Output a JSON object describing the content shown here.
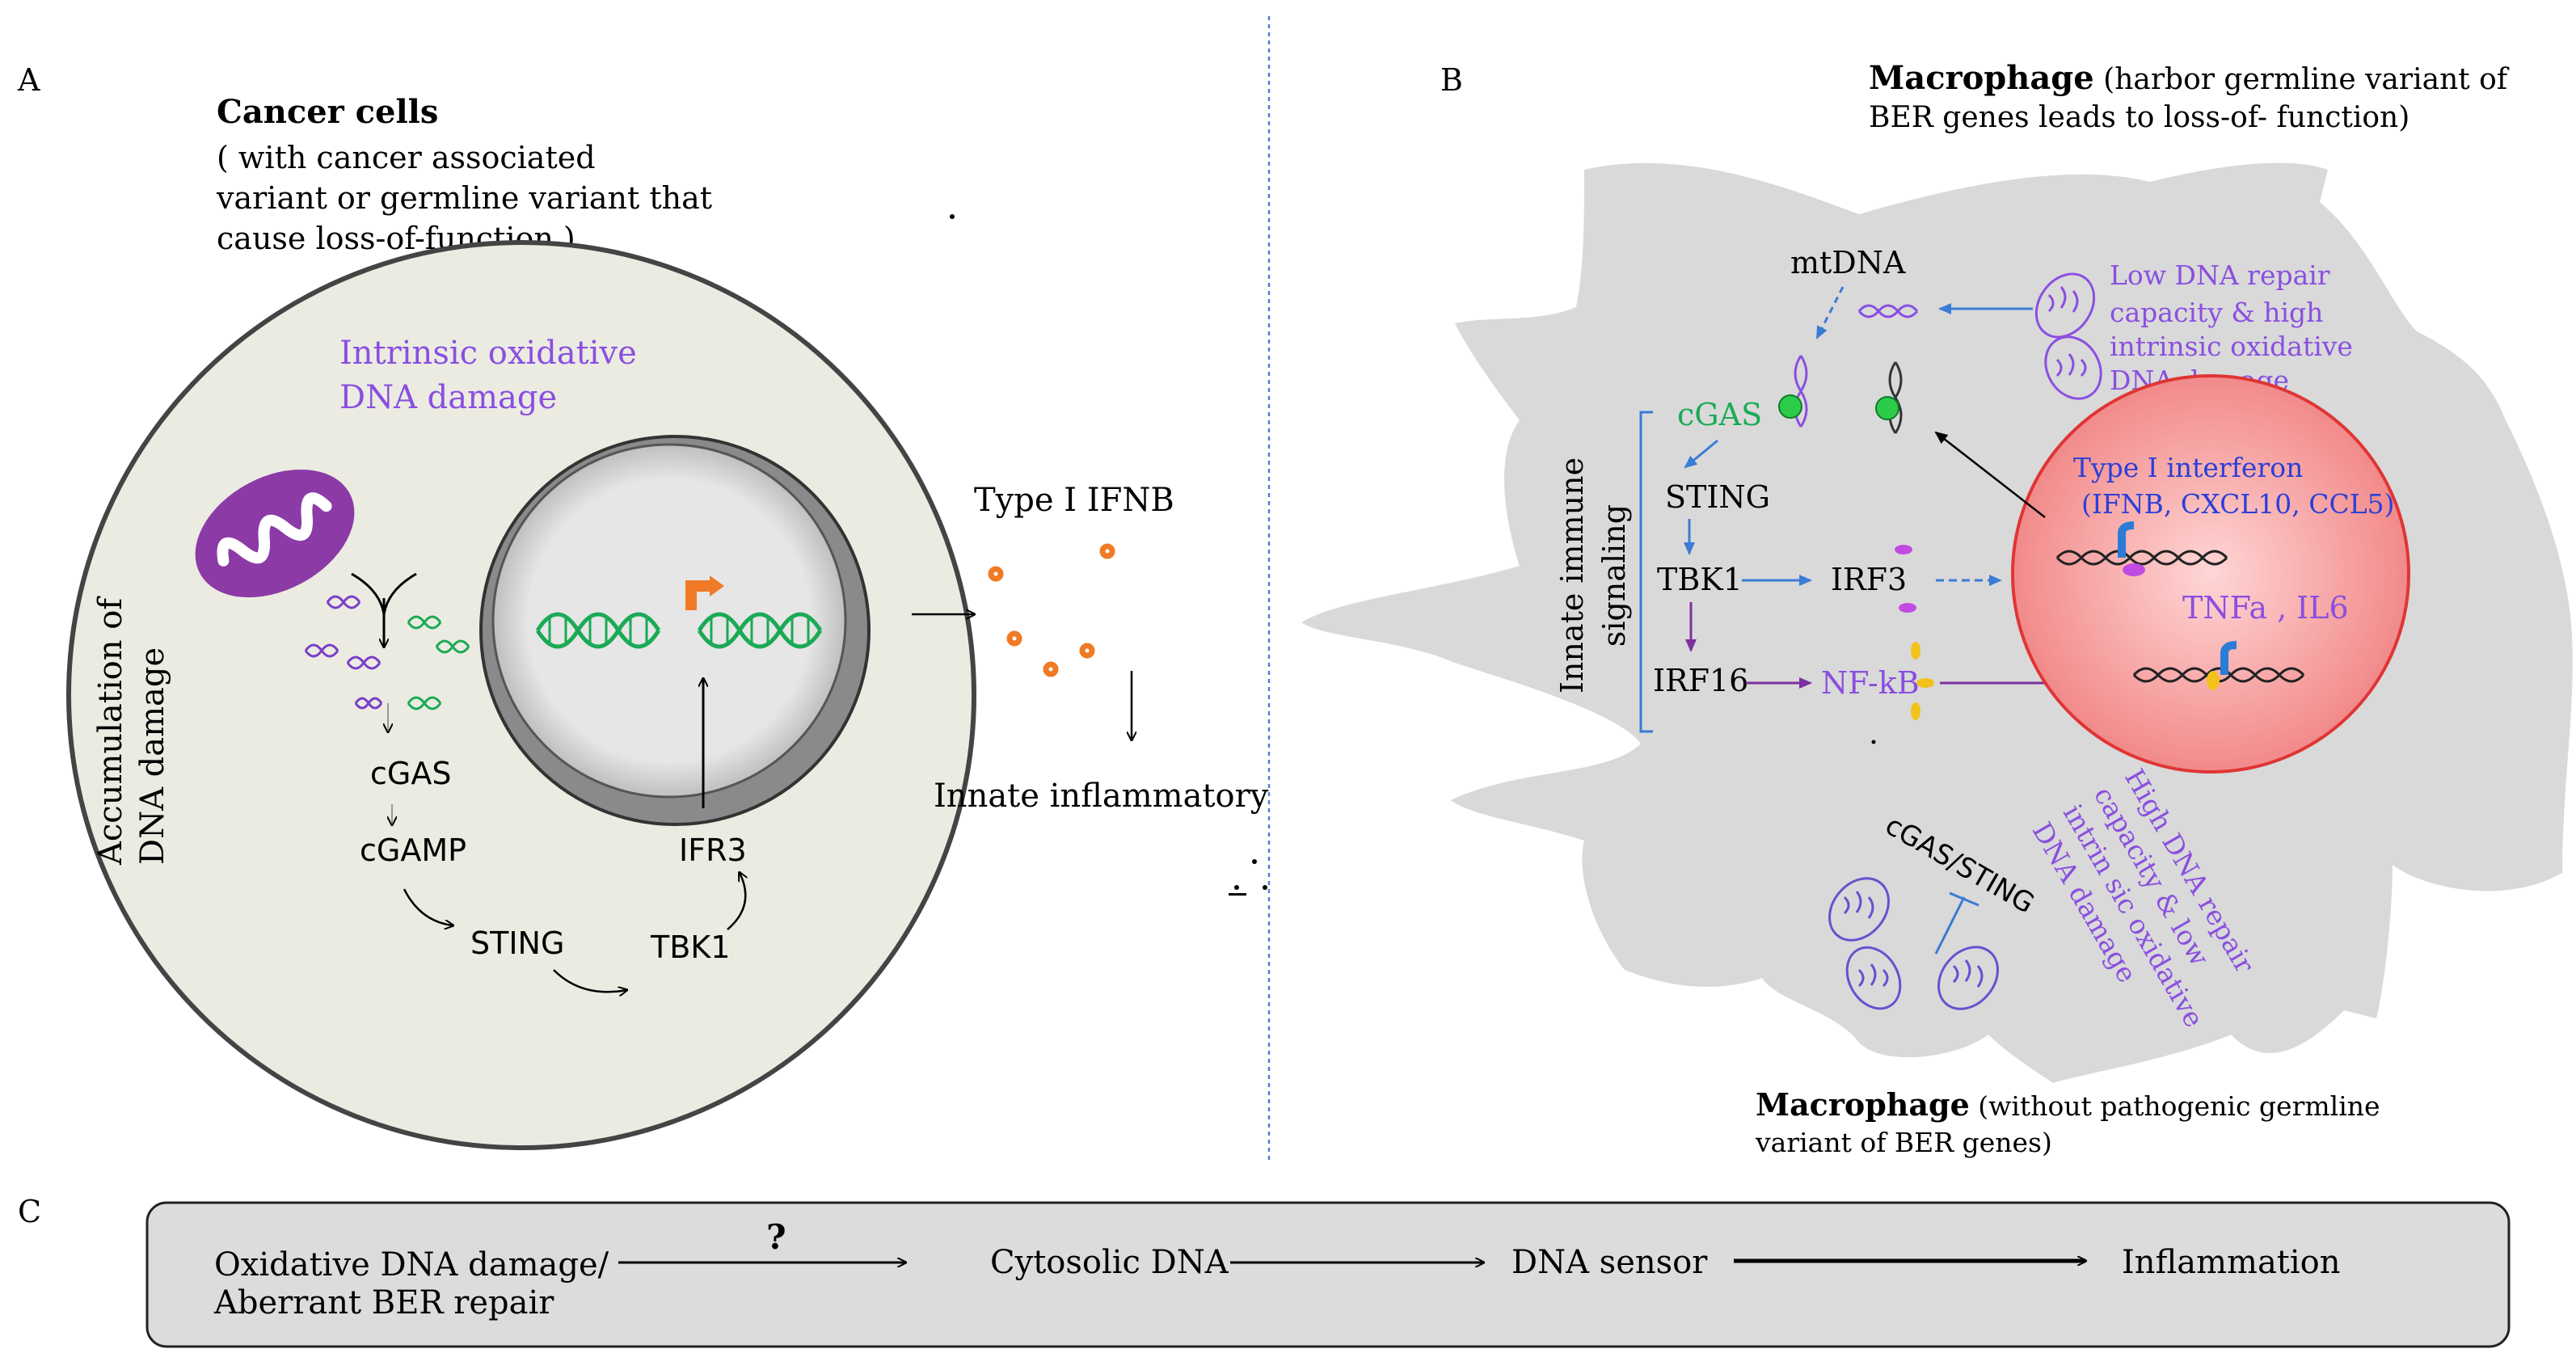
{
  "colors": {
    "cell_fill": "#ebebe2",
    "macrophage_fill": "#d9d9d9",
    "nucleus_red": "#f39a9a",
    "accent_purple": "#8a4fe0",
    "accent_green": "#1aaa55",
    "accent_orange": "#f07a25",
    "arrow_blue": "#3a7bd5",
    "arrow_purple": "#7d2fa0",
    "mito_purple": "#8b3aa6"
  },
  "panel_a": {
    "label": "A",
    "title": "Cancer cells",
    "subtitle_lines": [
      "( with cancer associated",
      " variant or germline variant that",
      "cause loss-of-function )"
    ],
    "oxidative_lines": [
      "Intrinsic oxidative",
      "DNA damage"
    ],
    "accumulation_lines": [
      "Accumulation of",
      "DNA damage"
    ],
    "pathway": {
      "cgas": "cGAS",
      "cgamp": "cGAMP",
      "sting": "STING",
      "tbk1": "TBK1",
      "ifr3": "IFR3"
    },
    "type_ifnb": "Type I IFNB",
    "innate_inflammatory": "Innate inflammatory"
  },
  "panel_b": {
    "label": "B",
    "macrophage_top_bold": "Macrophage",
    "macrophage_top_rest_line1": " (harbor germline variant  of",
    "macrophage_top_line2": "BER genes leads to loss-of- function)",
    "mtdna": "mtDNA",
    "low_repair_lines": [
      "Low DNA repair",
      "capacity  & high",
      "intrinsic oxidative",
      "DNA damage"
    ],
    "cgas": "cGAS",
    "sting": "STING",
    "tbk1": "TBK1",
    "irf3": "IRF3",
    "irf16": "IRF16",
    "nfkb": "NF-kB",
    "innate_lines": [
      "Innate immune",
      "signaling"
    ],
    "type_interferon": "Type I interferon",
    "interferon_genes": "(IFNB, CXCL10, CCL5)",
    "tnfa": "TNFa , IL6",
    "cgas_sting": "cGAS/STING",
    "high_repair_lines": [
      "High DNA repair",
      "capacity & low",
      "intrin sic oxidative",
      "DNA damage"
    ],
    "macrophage_bottom_bold": "Macrophage",
    "macrophage_bottom_rest_line1": " (without pathogenic  germline",
    "macrophage_bottom_line2": "variant  of  BER genes)"
  },
  "panel_c": {
    "label": "C",
    "step1_lines": [
      "Oxidative DNA damage/",
      "Aberrant BER repair"
    ],
    "question": "?",
    "step2": "Cytosolic DNA",
    "step3": "DNA sensor",
    "step4": "Inflammation"
  }
}
